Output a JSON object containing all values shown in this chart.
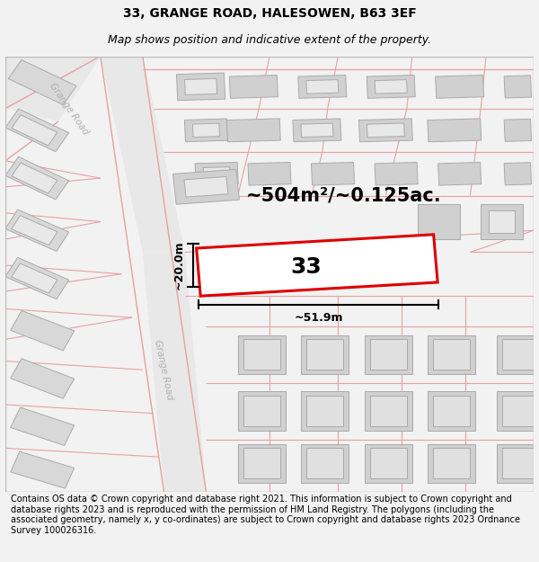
{
  "title": "33, GRANGE ROAD, HALESOWEN, B63 3EF",
  "subtitle": "Map shows position and indicative extent of the property.",
  "footer": "Contains OS data © Crown copyright and database right 2021. This information is subject to Crown copyright and database rights 2023 and is reproduced with the permission of HM Land Registry. The polygons (including the associated geometry, namely x, y co-ordinates) are subject to Crown copyright and database rights 2023 Ordnance Survey 100026316.",
  "bg_color": "#f2f2f2",
  "map_bg": "#ffffff",
  "road_color": "#e8a0a0",
  "road_bg": "#e8e8e8",
  "building_color": "#d0d0d0",
  "building_edge": "#aaaaaa",
  "road_label_color": "#b0b0b0",
  "highlight_color": "#dd0000",
  "highlight_fill": "#ffffff",
  "area_text": "~504m²/~0.125ac.",
  "number_text": "33",
  "width_text": "~51.9m",
  "height_text": "~20.0m",
  "title_fontsize": 10,
  "subtitle_fontsize": 9,
  "footer_fontsize": 7,
  "map_area_fontsize": 15,
  "number_fontsize": 18,
  "dim_fontsize": 9
}
